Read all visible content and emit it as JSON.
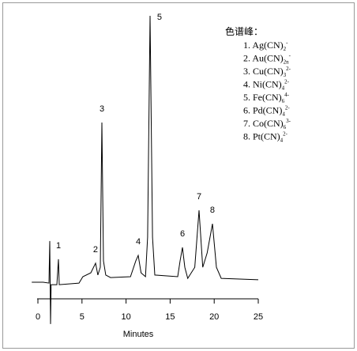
{
  "chart_data": {
    "type": "line",
    "x_label": "Minutes",
    "x": [
      -0.7,
      0.6,
      1.25,
      1.34,
      1.43,
      1.5,
      2.15,
      2.33,
      2.42,
      4.66,
      5.1,
      6.0,
      6.54,
      6.8,
      7.08,
      7.26,
      7.44,
      7.7,
      8.24,
      10.5,
      11.1,
      11.38,
      11.7,
      12.2,
      12.45,
      12.72,
      13.0,
      13.26,
      15.86,
      16.13,
      16.4,
      16.67,
      17.0,
      17.8,
      18.28,
      18.7,
      19.2,
      19.8,
      20.25,
      20.8,
      25
    ],
    "series": [
      {
        "color": "#000000",
        "values": [
          6,
          6,
          5.7,
          20.9,
          -9.1,
          5.1,
          5.1,
          14.3,
          5.1,
          5.7,
          8,
          9.4,
          12.9,
          8.6,
          11.4,
          63.7,
          13.7,
          8.6,
          7.7,
          8,
          13.7,
          15.7,
          9.4,
          8,
          22.3,
          102.3,
          22.3,
          8.6,
          8,
          13.7,
          18.6,
          11.4,
          7.4,
          11.4,
          32,
          11.4,
          16.6,
          27.1,
          11.4,
          7.4,
          6.9
        ]
      }
    ],
    "peaks": [
      {
        "label": "1",
        "x": 2.33,
        "y": 14.3
      },
      {
        "label": "2",
        "x": 6.54,
        "y": 12.9
      },
      {
        "label": "3",
        "x": 7.26,
        "y": 63.7
      },
      {
        "label": "4",
        "x": 11.38,
        "y": 15.7
      },
      {
        "label": "5",
        "x": 12.72,
        "y": 102.3
      },
      {
        "label": "6",
        "x": 16.4,
        "y": 18.6
      },
      {
        "label": "7",
        "x": 18.28,
        "y": 32
      },
      {
        "label": "8",
        "x": 19.8,
        "y": 27.1
      }
    ],
    "legend_title": "色谱峰：",
    "legend_items": [
      {
        "text": "1. Ag(CN)",
        "sub": "2",
        "sup": "-"
      },
      {
        "text": "2. Au(CN)",
        "sub": "2n",
        "sup": "-"
      },
      {
        "text": "3. Cu(CN)",
        "sub": "3",
        "sup": "2-"
      },
      {
        "text": "4. Ni(CN)",
        "sub": "4",
        "sup": "2-"
      },
      {
        "text": "5. Fe(CN)",
        "sub": "6",
        "sup": "4-"
      },
      {
        "text": "6. Pd(CN)",
        "sub": "4",
        "sup": "2-"
      },
      {
        "text": "7. Co(CN)",
        "sub": "6",
        "sup": "3-"
      },
      {
        "text": "8. Pt(CN)",
        "sub": "4",
        "sup": "2-"
      }
    ],
    "xlim": [
      0,
      25
    ],
    "xticks": [
      0,
      5,
      10,
      15,
      20,
      25
    ],
    "ylim": [
      -10,
      105
    ]
  }
}
